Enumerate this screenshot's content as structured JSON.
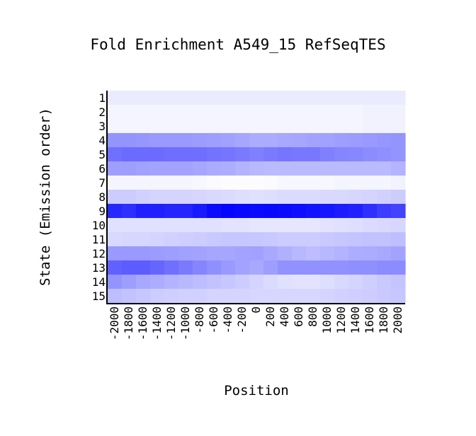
{
  "chart_data": {
    "type": "heatmap",
    "title": "Fold Enrichment A549_15 RefSeqTES",
    "xlabel": "Position",
    "ylabel": "State (Emission order)",
    "x_categories": [
      "-2000",
      "-1800",
      "-1600",
      "-1400",
      "-1200",
      "-1000",
      "-800",
      "-600",
      "-400",
      "-200",
      "0",
      "200",
      "400",
      "600",
      "800",
      "1000",
      "1200",
      "1400",
      "1600",
      "1800",
      "2000"
    ],
    "x_tick_labels": [
      "-2000",
      "-1800",
      "-1600",
      "-1400",
      "-1200",
      "-1000",
      "-800",
      "-600",
      "-400",
      "-200",
      "0",
      "200",
      "400",
      "600",
      "800",
      "1000",
      "1200",
      "1400",
      "1600",
      "1800",
      "2000"
    ],
    "y_categories": [
      "1",
      "2",
      "3",
      "4",
      "5",
      "6",
      "7",
      "8",
      "9",
      "10",
      "11",
      "12",
      "13",
      "14",
      "15"
    ],
    "color_scale": {
      "low": "#ffffff",
      "high": "#0000ff"
    },
    "values": [
      [
        0.08,
        0.08,
        0.08,
        0.08,
        0.08,
        0.08,
        0.08,
        0.08,
        0.08,
        0.08,
        0.08,
        0.08,
        0.08,
        0.08,
        0.08,
        0.08,
        0.08,
        0.08,
        0.08,
        0.08,
        0.08
      ],
      [
        0.04,
        0.04,
        0.04,
        0.04,
        0.04,
        0.04,
        0.04,
        0.04,
        0.04,
        0.04,
        0.04,
        0.04,
        0.04,
        0.04,
        0.04,
        0.04,
        0.04,
        0.04,
        0.05,
        0.05,
        0.05
      ],
      [
        0.04,
        0.04,
        0.04,
        0.04,
        0.04,
        0.04,
        0.04,
        0.04,
        0.04,
        0.04,
        0.04,
        0.04,
        0.04,
        0.04,
        0.04,
        0.04,
        0.04,
        0.04,
        0.05,
        0.05,
        0.05
      ],
      [
        0.42,
        0.42,
        0.41,
        0.4,
        0.4,
        0.4,
        0.39,
        0.38,
        0.37,
        0.35,
        0.33,
        0.33,
        0.34,
        0.35,
        0.36,
        0.37,
        0.38,
        0.39,
        0.4,
        0.41,
        0.42
      ],
      [
        0.56,
        0.58,
        0.58,
        0.58,
        0.57,
        0.57,
        0.57,
        0.55,
        0.54,
        0.52,
        0.5,
        0.52,
        0.54,
        0.53,
        0.53,
        0.5,
        0.48,
        0.47,
        0.45,
        0.44,
        0.42
      ],
      [
        0.38,
        0.38,
        0.37,
        0.36,
        0.36,
        0.36,
        0.35,
        0.33,
        0.32,
        0.3,
        0.28,
        0.27,
        0.27,
        0.27,
        0.27,
        0.27,
        0.27,
        0.27,
        0.27,
        0.27,
        0.3
      ],
      [
        0.04,
        0.04,
        0.04,
        0.04,
        0.04,
        0.04,
        0.03,
        0.02,
        0.01,
        0.01,
        0.01,
        0.02,
        0.03,
        0.03,
        0.03,
        0.03,
        0.04,
        0.04,
        0.04,
        0.04,
        0.05
      ],
      [
        0.2,
        0.2,
        0.18,
        0.17,
        0.17,
        0.17,
        0.16,
        0.15,
        0.14,
        0.13,
        0.12,
        0.13,
        0.14,
        0.14,
        0.14,
        0.15,
        0.15,
        0.16,
        0.17,
        0.18,
        0.2
      ],
      [
        0.85,
        0.82,
        0.88,
        0.88,
        0.86,
        0.86,
        0.9,
        0.96,
        0.98,
        0.97,
        0.96,
        0.97,
        0.96,
        0.95,
        0.93,
        0.91,
        0.89,
        0.87,
        0.82,
        0.76,
        0.74
      ],
      [
        0.12,
        0.12,
        0.12,
        0.12,
        0.12,
        0.12,
        0.12,
        0.12,
        0.11,
        0.11,
        0.1,
        0.1,
        0.1,
        0.1,
        0.1,
        0.11,
        0.12,
        0.13,
        0.14,
        0.15,
        0.16
      ],
      [
        0.15,
        0.16,
        0.16,
        0.17,
        0.18,
        0.19,
        0.2,
        0.21,
        0.22,
        0.22,
        0.22,
        0.21,
        0.2,
        0.2,
        0.2,
        0.21,
        0.22,
        0.23,
        0.24,
        0.24,
        0.25
      ],
      [
        0.4,
        0.4,
        0.4,
        0.39,
        0.38,
        0.37,
        0.36,
        0.35,
        0.35,
        0.36,
        0.37,
        0.34,
        0.31,
        0.28,
        0.26,
        0.28,
        0.3,
        0.32,
        0.33,
        0.34,
        0.36
      ],
      [
        0.62,
        0.64,
        0.64,
        0.6,
        0.56,
        0.52,
        0.48,
        0.44,
        0.4,
        0.36,
        0.34,
        0.38,
        0.43,
        0.43,
        0.43,
        0.43,
        0.43,
        0.44,
        0.44,
        0.45,
        0.45
      ],
      [
        0.42,
        0.38,
        0.34,
        0.32,
        0.3,
        0.28,
        0.26,
        0.24,
        0.22,
        0.2,
        0.17,
        0.14,
        0.12,
        0.11,
        0.11,
        0.13,
        0.15,
        0.17,
        0.19,
        0.21,
        0.23
      ],
      [
        0.26,
        0.24,
        0.22,
        0.2,
        0.19,
        0.18,
        0.18,
        0.17,
        0.17,
        0.17,
        0.16,
        0.16,
        0.16,
        0.16,
        0.16,
        0.17,
        0.18,
        0.19,
        0.2,
        0.21,
        0.22
      ]
    ]
  }
}
